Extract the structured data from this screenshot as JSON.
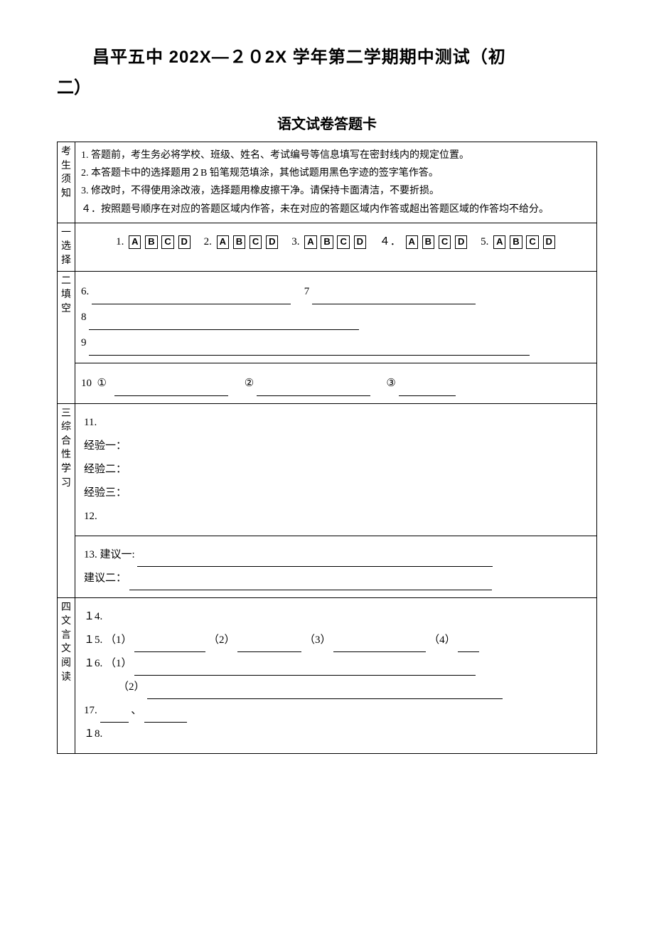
{
  "header": {
    "title_line1": "昌平五中 202X—２０2X 学年第二学期期中测试（初",
    "title_line2": "二）",
    "subtitle": "语文试卷答题卡"
  },
  "instructions": {
    "side_label": "考生须知",
    "lines": [
      "1. 答题前，考生务必将学校、班级、姓名、考试编号等信息填写在密封线内的规定位置。",
      "2. 本答题卡中的选择题用２B 铅笔规范填涂，其他试题用黑色字迹的签字笔作答。",
      "3. 修改时，不得使用涂改液，选择题用橡皮擦干净。请保持卡面清洁，不要折损。",
      "４．按照题号顺序在对应的答题区域内作答，未在对应的答题区域内作答或超出答题区域的作答均不给分。"
    ]
  },
  "section1": {
    "side_label": "一选择",
    "questions": [
      "1.",
      "2.",
      "3.",
      "４．",
      "5."
    ],
    "options": [
      "A",
      "B",
      "C",
      "D"
    ]
  },
  "section2": {
    "side_label": "二填空",
    "q6": "6.",
    "q7": "7",
    "q8": "8",
    "q9": "9",
    "q10": "10",
    "sub1": "①",
    "sub2": "②",
    "sub3": "③"
  },
  "section3": {
    "side_label": "三综合性学习",
    "q11": "11.",
    "exp1": "经验一：",
    "exp2": "经验二：",
    "exp3": "经验三：",
    "q12": "12.",
    "q13": "13. 建议一:",
    "sug2": "建议二："
  },
  "section4": {
    "side_label": "四文言文阅读",
    "q14": "１4.",
    "q15": "１5.",
    "p1": "（1）",
    "p2": "（2）",
    "p3": "（3）",
    "p4": "（4）",
    "q16": "１6.",
    "q17": "17.",
    "dot": "、",
    "q18": "１8."
  }
}
